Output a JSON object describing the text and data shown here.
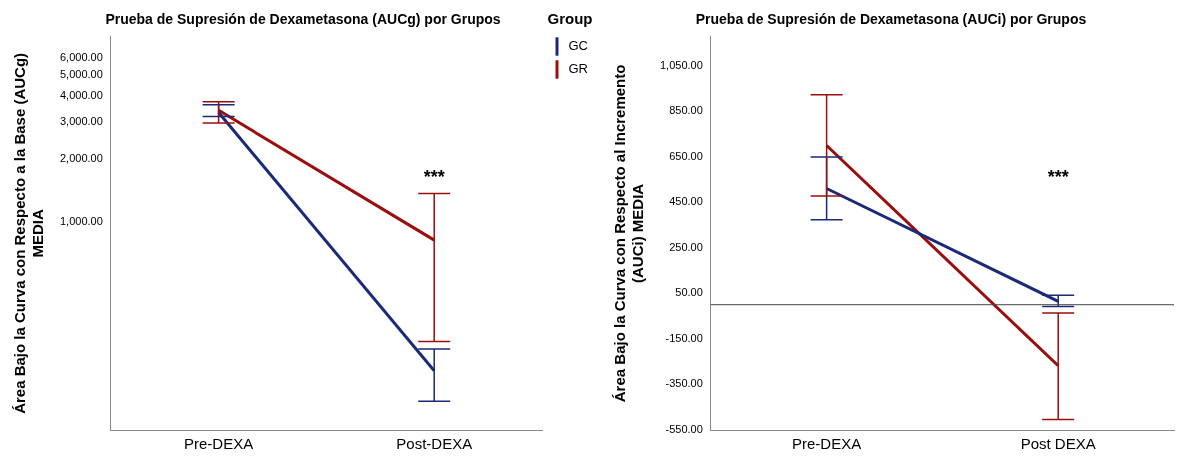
{
  "chart_data": [
    {
      "type": "line",
      "title": "Prueba de Supresión de Dexametasona (AUCg) por Grupos",
      "ylabel": "Área Bajo la Curva con Respecto a la Base (AUCg)\nMEDIA",
      "categories": [
        "Pre-DEXA",
        "Post-DEXA"
      ],
      "series": [
        {
          "name": "GC",
          "color": "#1b2a78",
          "values": [
            3320,
            197
          ],
          "errors": [
            [
              3180,
              3610
            ],
            [
              141,
              250
            ]
          ]
        },
        {
          "name": "GR",
          "color": "#9a0e0e",
          "values": [
            3400,
            822
          ],
          "errors": [
            [
              2960,
              3730
            ],
            [
              271,
              1368
            ]
          ]
        }
      ],
      "log": "y",
      "ylim": [
        103,
        7600
      ],
      "yticks": [
        {
          "value": 1000,
          "label": "1,000.00"
        },
        {
          "value": 2000,
          "label": "2,000.00"
        },
        {
          "value": 3000,
          "label": "3,000.00"
        },
        {
          "value": 4000,
          "label": "4,000.00"
        },
        {
          "value": 5000,
          "label": "5,000.00"
        },
        {
          "value": 6000,
          "label": "6,000.00"
        }
      ],
      "grid": false,
      "marker": "none",
      "legend": "top right",
      "legend_title": "Group",
      "annotations": [
        "***"
      ]
    },
    {
      "type": "line",
      "title": "Prueba de Supresión de Dexametasona (AUCi) por Grupos",
      "ylabel": "Área Bajo la Curva con Respecto al Incremento\n(AUCi) MEDIA",
      "categories": [
        "Pre-DEXA",
        "Post DEXA"
      ],
      "series": [
        {
          "color": "#1b2a78",
          "values": [
            510,
            15
          ],
          "errors": [
            [
              373,
              648
            ],
            [
              -8,
              42
            ]
          ]
        },
        {
          "color": "#9a0e0e",
          "values": [
            699,
            -268
          ],
          "errors": [
            [
              477,
              922
            ],
            [
              -504,
              -36
            ]
          ]
        }
      ],
      "ylim": [
        -550,
        1176
      ],
      "yticks": [
        {
          "value": -550,
          "label": "-550.00"
        },
        {
          "value": -350,
          "label": "-350.00"
        },
        {
          "value": -150,
          "label": "-150.00"
        },
        {
          "value": 50,
          "label": "50.00"
        },
        {
          "value": 250,
          "label": "250.00"
        },
        {
          "value": 450,
          "label": "450.00"
        },
        {
          "value": 650,
          "label": "650.00"
        },
        {
          "value": 850,
          "label": "850.00"
        },
        {
          "value": 1050,
          "label": "1,050.00"
        }
      ],
      "grid": false,
      "marker": "none",
      "legend": false,
      "ref_lines": [
        {
          "axis": "y",
          "value": 0,
          "color": "#444444"
        }
      ],
      "annotations": [
        "***"
      ]
    }
  ]
}
